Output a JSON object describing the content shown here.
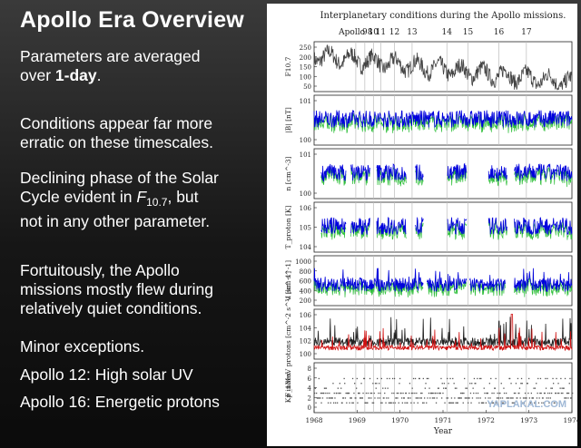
{
  "slide": {
    "title": "Apollo Era Overview",
    "b1_pre": "Parameters are averaged",
    "b1_mid": "over ",
    "b1_bold": "1-day",
    "b1_post": ".",
    "b2_l1": "Conditions appear far more",
    "b2_l2": "erratic on these timescales.",
    "b3_l1": "Declining phase of the Solar",
    "b3_l2_pre": "Cycle evident in ",
    "b3_f": "F",
    "b3_sub": "10.7",
    "b3_l2_post": ", but",
    "b3_l3": "not in any other parameter.",
    "b4_l1": "Fortuitously, the Apollo",
    "b4_l2": "missions mostly flew during",
    "b4_l3": "relatively quiet conditions.",
    "b5": "Minor exceptions.",
    "b6": "Apollo 12: High solar UV",
    "b7": "Apollo 16: Energetic protons",
    "watermark": "YAPLAKAL.COM"
  },
  "chart_data": {
    "type": "line",
    "title": "Interplanetary conditions during the Apollo missions.",
    "xlabel": "Year",
    "xlim": [
      1968,
      1974
    ],
    "x_ticks": [
      "1968",
      "1969",
      "1970",
      "1971",
      "1972",
      "1973",
      "1974"
    ],
    "missions": [
      {
        "label": "Apollo 8",
        "t": 1968.97
      },
      {
        "label": "9",
        "t": 1969.18
      },
      {
        "label": "10",
        "t": 1969.38
      },
      {
        "label": "11",
        "t": 1969.55
      },
      {
        "label": "12",
        "t": 1969.87
      },
      {
        "label": "13",
        "t": 1970.28
      },
      {
        "label": "14",
        "t": 1971.09
      },
      {
        "label": "15",
        "t": 1971.58
      },
      {
        "label": "16",
        "t": 1972.3
      },
      {
        "label": "17",
        "t": 1972.94
      }
    ],
    "panels": [
      {
        "id": "f107",
        "ylabel": "F10.7",
        "ticks": [
          "250",
          "200",
          "150",
          "100",
          "50"
        ],
        "ylim": [
          50,
          250
        ],
        "log": false,
        "color": "#444444",
        "gaps": []
      },
      {
        "id": "imf",
        "ylabel": "|B| [nT]",
        "ticks": [
          "10^1",
          "10^0"
        ],
        "ylim": [
          1,
          30
        ],
        "log": true,
        "color": "#0000dd",
        "gaps": []
      },
      {
        "id": "density",
        "ylabel": "n [cm^-3]",
        "ticks": [
          "10^1",
          "10^0"
        ],
        "ylim": [
          0.3,
          40
        ],
        "log": true,
        "color": "#0000dd",
        "gaps": [
          [
            1968.0,
            1968.15
          ],
          [
            1968.75,
            1968.85
          ],
          [
            1969.3,
            1969.45
          ],
          [
            1970.15,
            1970.35
          ],
          [
            1970.55,
            1971.1
          ],
          [
            1971.55,
            1972.05
          ],
          [
            1972.5,
            1972.65
          ]
        ]
      },
      {
        "id": "temperature",
        "ylabel": "T_proton [K]",
        "ticks": [
          "10^6",
          "10^5",
          "10^4"
        ],
        "ylim": [
          5000,
          2000000
        ],
        "log": true,
        "color": "#0000dd",
        "gaps": [
          [
            1968.0,
            1968.15
          ],
          [
            1968.75,
            1968.85
          ],
          [
            1969.3,
            1969.45
          ],
          [
            1970.15,
            1970.35
          ],
          [
            1970.55,
            1971.1
          ],
          [
            1971.55,
            1972.05
          ],
          [
            1972.5,
            1972.65
          ]
        ]
      },
      {
        "id": "speed",
        "ylabel": "V [km s^-1]",
        "ticks": [
          "1000",
          "800",
          "600",
          "400",
          "200"
        ],
        "ylim": [
          200,
          1000
        ],
        "log": false,
        "color": "#0000dd",
        "gaps": [
          [
            1970.55,
            1970.62
          ],
          [
            1971.55,
            1971.62
          ],
          [
            1972.45,
            1972.65
          ]
        ]
      },
      {
        "id": "proton_flux",
        "ylabel": "F_1MeV protons [cm^-2 s^-1 sr^-1]",
        "ticks": [
          "10^6",
          "10^4",
          "10^2",
          "10^0"
        ],
        "ylim": [
          1,
          1000000
        ],
        "log": true,
        "color": "#222222",
        "gaps": []
      },
      {
        "id": "kp",
        "ylabel": "Kp index",
        "ticks": [
          "8",
          "6",
          "4",
          "2",
          "0"
        ],
        "ylim": [
          0,
          8
        ],
        "log": false,
        "color": "#555555",
        "gaps": []
      }
    ]
  }
}
